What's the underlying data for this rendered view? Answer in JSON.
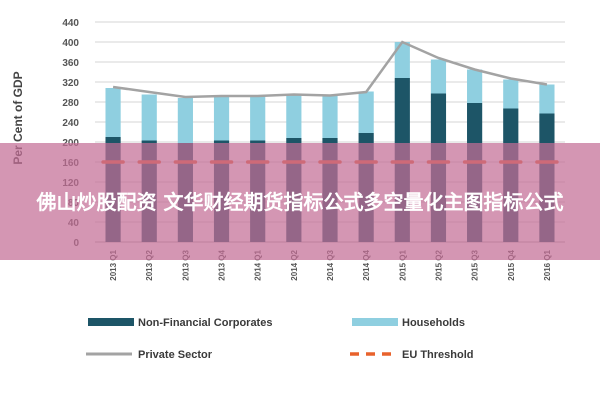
{
  "chart_data": {
    "type": "bar",
    "ylabel": "Per Cent of GDP",
    "ylim": [
      0,
      440
    ],
    "yticks": [
      0,
      40,
      80,
      120,
      160,
      200,
      240,
      280,
      320,
      360,
      400,
      440
    ],
    "categories": [
      "2013 Q1",
      "2013 Q2",
      "2013 Q3",
      "2013 Q4",
      "2014 Q1",
      "2014 Q2",
      "2014 Q3",
      "2014 Q4",
      "2015 Q1",
      "2015 Q2",
      "2015 Q3",
      "2015 Q4",
      "2016 Q1"
    ],
    "series": [
      {
        "name": "Non-Financial Corporates",
        "kind": "stacked-bar",
        "color": "#1d5567",
        "values": [
          210,
          203,
          198,
          203,
          203,
          208,
          208,
          218,
          328,
          297,
          278,
          267,
          257
        ]
      },
      {
        "name": "Households",
        "kind": "stacked-bar",
        "color": "#8fcfe0",
        "values": [
          98,
          92,
          90,
          87,
          88,
          88,
          84,
          83,
          72,
          68,
          67,
          58,
          58
        ]
      },
      {
        "name": "Private Sector",
        "kind": "line",
        "color": "#a3a3a3",
        "values": [
          310,
          300,
          290,
          292,
          292,
          295,
          293,
          300,
          400,
          368,
          345,
          327,
          315
        ]
      },
      {
        "name": "EU Threshold",
        "kind": "dashed-line",
        "color": "#e8622c",
        "values": [
          160,
          160,
          160,
          160,
          160,
          160,
          160,
          160,
          160,
          160,
          160,
          160,
          160
        ]
      }
    ],
    "grid": true,
    "legend_position": "bottom"
  },
  "overlay": {
    "text": "佛山炒股配资 文华财经期货指标公式多空量化主图指标公式"
  }
}
